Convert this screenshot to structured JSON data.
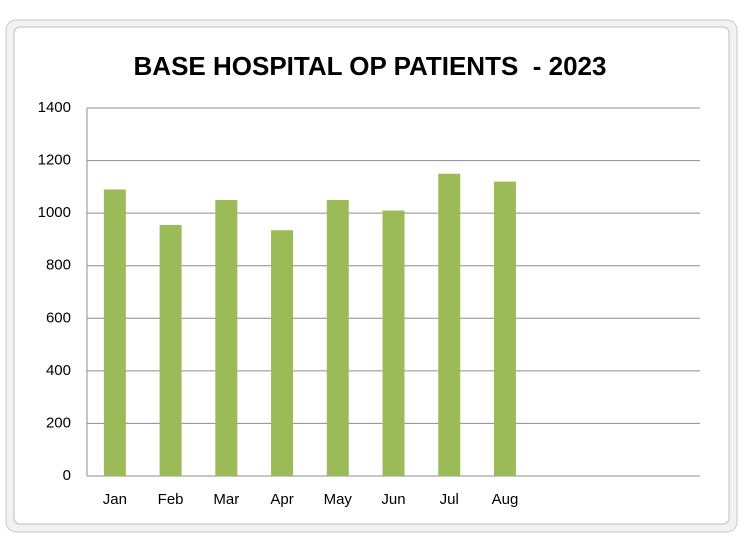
{
  "chart_data": {
    "type": "bar",
    "title": "BASE HOSPITAL OP PATIENTS  - 2023",
    "categories": [
      "Jan",
      "Feb",
      "Mar",
      "Apr",
      "May",
      "Jun",
      "Jul",
      "Aug",
      null,
      null,
      null
    ],
    "values": [
      1090,
      955,
      1050,
      935,
      1050,
      1010,
      1150,
      1120,
      null,
      null,
      null
    ],
    "color": "#9bbb59",
    "ylim": [
      0,
      1400
    ],
    "yticks": [
      0,
      200,
      400,
      600,
      800,
      1000,
      1200,
      1400
    ],
    "grid": true
  }
}
